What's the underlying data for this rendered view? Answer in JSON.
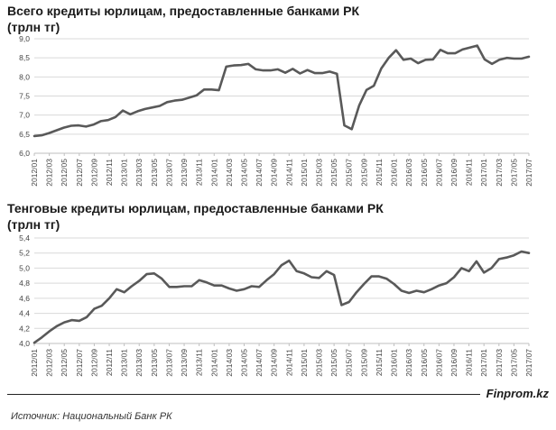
{
  "chart_data": [
    {
      "type": "line",
      "title": "Всего кредиты юрлицам, предоставленные банками РК",
      "units": "(трлн тг)",
      "ylim": [
        6.0,
        9.0
      ],
      "yticks": [
        "6,0",
        "6,5",
        "7,0",
        "7,5",
        "8,0",
        "8,5",
        "9,0"
      ],
      "xtick_labels": [
        "2012/01",
        "2012/03",
        "2012/05",
        "2012/07",
        "2012/09",
        "2012/11",
        "2013/01",
        "2013/03",
        "2013/05",
        "2013/07",
        "2013/09",
        "2013/11",
        "2014/01",
        "2014/03",
        "2014/05",
        "2014/07",
        "2014/09",
        "2014/11",
        "2015/01",
        "2015/03",
        "2015/05",
        "2015/07",
        "2015/09",
        "2015/11",
        "2016/01",
        "2016/03",
        "2016/05",
        "2016/07",
        "2016/09",
        "2016/11",
        "2017/01",
        "2017/03",
        "2017/05",
        "2017/07"
      ],
      "grid": true,
      "series": [
        {
          "values": [
            6.45,
            6.47,
            6.53,
            6.6,
            6.67,
            6.72,
            6.73,
            6.7,
            6.75,
            6.84,
            6.87,
            6.95,
            7.12,
            7.02,
            7.1,
            7.16,
            7.2,
            7.24,
            7.34,
            7.38,
            7.4,
            7.46,
            7.52,
            7.67,
            7.67,
            7.65,
            8.27,
            8.3,
            8.31,
            8.34,
            8.2,
            8.17,
            8.17,
            8.2,
            8.11,
            8.21,
            8.09,
            8.18,
            8.1,
            8.1,
            8.14,
            8.08,
            6.73,
            6.63,
            7.25,
            7.66,
            7.77,
            8.22,
            8.5,
            8.7,
            8.45,
            8.48,
            8.36,
            8.45,
            8.46,
            8.71,
            8.62,
            8.62,
            8.72,
            8.77,
            8.82,
            8.46,
            8.34,
            8.45,
            8.5,
            8.48,
            8.48,
            8.53
          ]
        }
      ]
    },
    {
      "type": "line",
      "title": "Тенговые кредиты юрлицам, предоставленные банками РК",
      "units": "(трлн тг)",
      "ylim": [
        4.0,
        5.4
      ],
      "yticks": [
        "4,0",
        "4,2",
        "4,4",
        "4,6",
        "4,8",
        "5,0",
        "5,2",
        "5,4"
      ],
      "xtick_labels": [
        "2012/01",
        "2012/03",
        "2012/05",
        "2012/07",
        "2012/09",
        "2012/11",
        "2013/01",
        "2013/03",
        "2013/05",
        "2013/07",
        "2013/09",
        "2013/11",
        "2014/01",
        "2014/03",
        "2014/05",
        "2014/07",
        "2014/09",
        "2014/11",
        "2015/01",
        "2015/03",
        "2015/05",
        "2015/07",
        "2015/09",
        "2015/11",
        "2016/01",
        "2016/03",
        "2016/05",
        "2016/07",
        "2016/09",
        "2016/11",
        "2017/01",
        "2017/03",
        "2017/05",
        "2017/07"
      ],
      "grid": true,
      "series": [
        {
          "values": [
            4.01,
            4.08,
            4.16,
            4.23,
            4.28,
            4.31,
            4.3,
            4.35,
            4.46,
            4.5,
            4.6,
            4.72,
            4.68,
            4.76,
            4.83,
            4.92,
            4.93,
            4.86,
            4.75,
            4.75,
            4.76,
            4.76,
            4.84,
            4.81,
            4.77,
            4.77,
            4.73,
            4.7,
            4.72,
            4.76,
            4.75,
            4.84,
            4.92,
            5.04,
            5.1,
            4.96,
            4.93,
            4.88,
            4.87,
            4.96,
            4.91,
            4.51,
            4.55,
            4.68,
            4.79,
            4.89,
            4.89,
            4.86,
            4.79,
            4.7,
            4.67,
            4.7,
            4.68,
            4.72,
            4.77,
            4.8,
            4.88,
            5.0,
            4.96,
            5.09,
            4.94,
            5.0,
            5.12,
            5.14,
            5.17,
            5.22,
            5.2
          ]
        }
      ]
    }
  ],
  "footer": {
    "brand": "Finprom.kz",
    "source": "Источник: Национальный Банк РК"
  },
  "colors": {
    "line": "#595959",
    "grid": "#d9d9d9",
    "text": "#1a1a1a"
  }
}
